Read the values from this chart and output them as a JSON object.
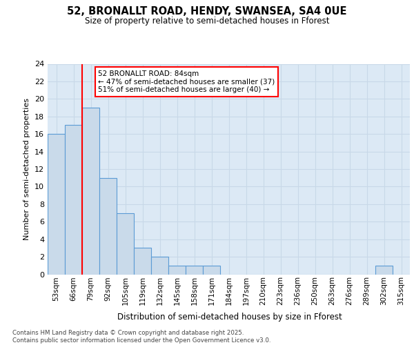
{
  "title": "52, BRONALLT ROAD, HENDY, SWANSEA, SA4 0UE",
  "subtitle": "Size of property relative to semi-detached houses in Fforest",
  "xlabel": "Distribution of semi-detached houses by size in Fforest",
  "ylabel": "Number of semi-detached properties",
  "categories": [
    "53sqm",
    "66sqm",
    "79sqm",
    "92sqm",
    "105sqm",
    "119sqm",
    "132sqm",
    "145sqm",
    "158sqm",
    "171sqm",
    "184sqm",
    "197sqm",
    "210sqm",
    "223sqm",
    "236sqm",
    "250sqm",
    "263sqm",
    "276sqm",
    "289sqm",
    "302sqm",
    "315sqm"
  ],
  "values": [
    16,
    17,
    19,
    11,
    7,
    3,
    2,
    1,
    1,
    1,
    0,
    0,
    0,
    0,
    0,
    0,
    0,
    0,
    0,
    1,
    0
  ],
  "bar_color": "#c9daea",
  "bar_edge_color": "#5b9bd5",
  "red_line_x": 1.5,
  "annotation_title": "52 BRONALLT ROAD: 84sqm",
  "annotation_line1": "← 47% of semi-detached houses are smaller (37)",
  "annotation_line2": "51% of semi-detached houses are larger (40) →",
  "ylim_max": 24,
  "yticks": [
    0,
    2,
    4,
    6,
    8,
    10,
    12,
    14,
    16,
    18,
    20,
    22,
    24
  ],
  "grid_color": "#c8d8e8",
  "bg_color": "#dce9f5",
  "footer_line1": "Contains HM Land Registry data © Crown copyright and database right 2025.",
  "footer_line2": "Contains public sector information licensed under the Open Government Licence v3.0."
}
